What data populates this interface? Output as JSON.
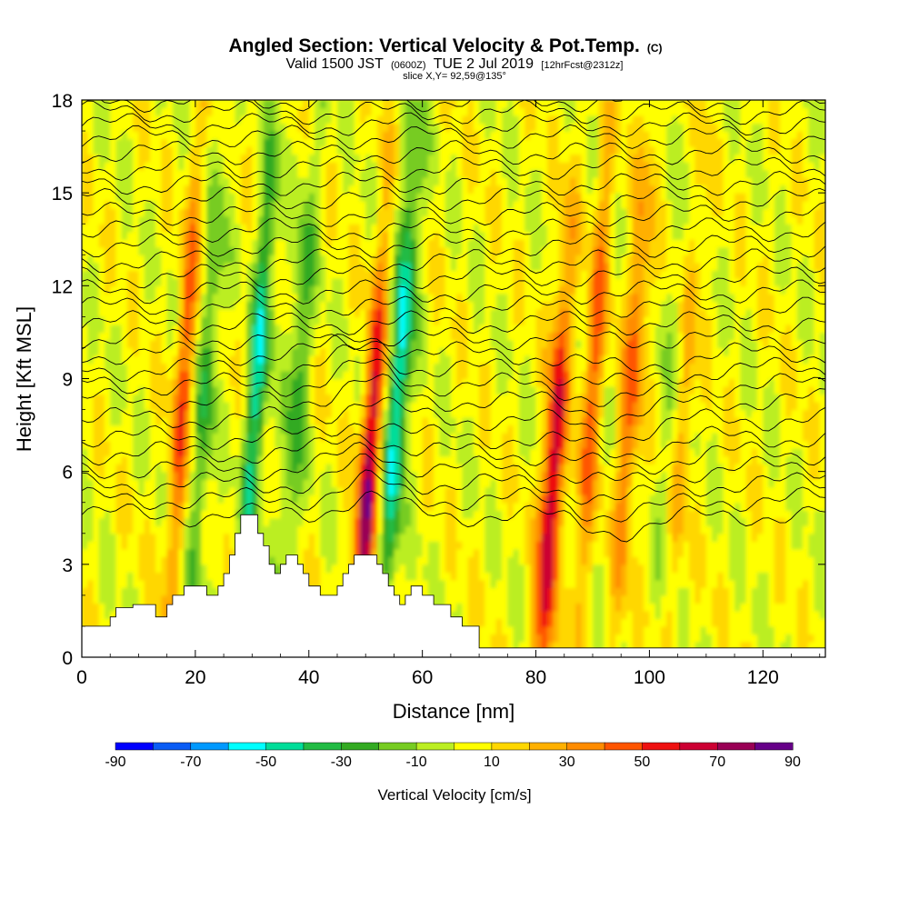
{
  "title": {
    "main": "Angled Section: Vertical Velocity & Pot.Temp.",
    "main_suffix": "(C)",
    "valid_prefix": "Valid 1500 JST",
    "valid_z": "(0600Z)",
    "valid_date": "TUE 2 Jul 2019",
    "valid_fcst": "[12hrFcst@2312z]",
    "slice": "slice X,Y= 92,59@135°"
  },
  "chart_data": {
    "type": "heatmap",
    "xlabel": "Distance [nm]",
    "ylabel": "Height [Kft MSL]",
    "xlim": [
      0,
      131
    ],
    "ylim": [
      0,
      18
    ],
    "x_ticks": [
      0,
      20,
      40,
      60,
      80,
      100,
      120
    ],
    "y_ticks": [
      0,
      3,
      6,
      9,
      12,
      15,
      18
    ],
    "colorbar": {
      "title": "Vertical Velocity [cm/s]",
      "tick_labels": [
        "-90",
        "-70",
        "-50",
        "-30",
        "-10",
        "10",
        "30",
        "50",
        "70",
        "90"
      ],
      "levels": [
        -90,
        -80,
        -70,
        -60,
        -50,
        -40,
        -30,
        -20,
        -10,
        0,
        10,
        20,
        30,
        40,
        50,
        60,
        70,
        80,
        90
      ],
      "colors": [
        "#0000ff",
        "#0a5cf5",
        "#0099ff",
        "#00ffff",
        "#00dd99",
        "#22bb44",
        "#33aa22",
        "#77cc22",
        "#bbee22",
        "#ffff00",
        "#ffd700",
        "#ffb000",
        "#ff8c00",
        "#ff5500",
        "#ee1111",
        "#cc0033",
        "#990055",
        "#660088"
      ]
    },
    "vertical_velocity_features": [
      {
        "x": 17,
        "kind": "updraft",
        "peak_cms": 40
      },
      {
        "x": 21,
        "kind": "downdraft",
        "peak_cms": -30
      },
      {
        "x": 30,
        "kind": "downdraft",
        "peak_cms": -50
      },
      {
        "x": 37,
        "kind": "downdraft",
        "peak_cms": -30
      },
      {
        "x": 50.5,
        "kind": "updraft",
        "peak_cms": 70
      },
      {
        "x": 55,
        "kind": "downdraft",
        "peak_cms": -60
      },
      {
        "x": 83,
        "kind": "updraft",
        "peak_cms": 70
      },
      {
        "x": 89,
        "kind": "updraft",
        "peak_cms": 40
      },
      {
        "x": 96,
        "kind": "updraft",
        "peak_cms": 40
      },
      {
        "x": 104,
        "kind": "downdraft",
        "peak_cms": -30
      },
      {
        "x": 105,
        "kind": "updraft",
        "peak_cms": 40
      }
    ],
    "terrain": [
      [
        0,
        1.0
      ],
      [
        5,
        1.0
      ],
      [
        5,
        1.3
      ],
      [
        6,
        1.3
      ],
      [
        6,
        1.6
      ],
      [
        9,
        1.6
      ],
      [
        9,
        1.7
      ],
      [
        13,
        1.7
      ],
      [
        13,
        1.3
      ],
      [
        15,
        1.3
      ],
      [
        15,
        1.7
      ],
      [
        16,
        1.7
      ],
      [
        16,
        2.0
      ],
      [
        18,
        2.0
      ],
      [
        18,
        2.3
      ],
      [
        22,
        2.3
      ],
      [
        22,
        2.0
      ],
      [
        24,
        2.0
      ],
      [
        24,
        2.3
      ],
      [
        25,
        2.3
      ],
      [
        25,
        2.7
      ],
      [
        26,
        2.7
      ],
      [
        26,
        3.3
      ],
      [
        27,
        3.3
      ],
      [
        27,
        4.0
      ],
      [
        28,
        4.0
      ],
      [
        28,
        4.6
      ],
      [
        31,
        4.6
      ],
      [
        31,
        4.0
      ],
      [
        32,
        4.0
      ],
      [
        32,
        3.6
      ],
      [
        33,
        3.6
      ],
      [
        33,
        3.0
      ],
      [
        34,
        3.0
      ],
      [
        34,
        2.7
      ],
      [
        35,
        2.7
      ],
      [
        35,
        3.0
      ],
      [
        36,
        3.0
      ],
      [
        36,
        3.3
      ],
      [
        38,
        3.3
      ],
      [
        38,
        3.0
      ],
      [
        39,
        3.0
      ],
      [
        39,
        2.7
      ],
      [
        40,
        2.7
      ],
      [
        40,
        2.3
      ],
      [
        42,
        2.3
      ],
      [
        42,
        2.0
      ],
      [
        45,
        2.0
      ],
      [
        45,
        2.3
      ],
      [
        46,
        2.3
      ],
      [
        46,
        2.7
      ],
      [
        47,
        2.7
      ],
      [
        47,
        3.0
      ],
      [
        48,
        3.0
      ],
      [
        48,
        3.3
      ],
      [
        52,
        3.3
      ],
      [
        52,
        3.0
      ],
      [
        53,
        3.0
      ],
      [
        53,
        2.7
      ],
      [
        54,
        2.7
      ],
      [
        54,
        2.3
      ],
      [
        55,
        2.3
      ],
      [
        55,
        2.0
      ],
      [
        56,
        2.0
      ],
      [
        56,
        1.7
      ],
      [
        57,
        1.7
      ],
      [
        57,
        2.0
      ],
      [
        58,
        2.0
      ],
      [
        58,
        2.3
      ],
      [
        60,
        2.3
      ],
      [
        60,
        2.0
      ],
      [
        62,
        2.0
      ],
      [
        62,
        1.7
      ],
      [
        65,
        1.7
      ],
      [
        65,
        1.3
      ],
      [
        67,
        1.3
      ],
      [
        67,
        1.0
      ],
      [
        70,
        1.0
      ],
      [
        70,
        0.3
      ],
      [
        131,
        0.3
      ]
    ],
    "theta_contours": {
      "levels": [
        30,
        31,
        32,
        33,
        34,
        35,
        36,
        37,
        38,
        39,
        40,
        41,
        42,
        43,
        44,
        45,
        46,
        47,
        48,
        49,
        50,
        51,
        52,
        53,
        54,
        55,
        56,
        57,
        58,
        59
      ],
      "base_heights_kft": [
        4.6,
        5.1,
        5.6,
        6.1,
        6.6,
        7.1,
        7.7,
        8.3,
        8.8,
        9.3,
        9.8,
        10.3,
        10.8,
        11.3,
        11.8,
        12.3,
        12.8,
        13.3,
        13.8,
        14.3,
        14.8,
        15.3,
        15.8,
        16.3,
        16.8,
        17.2,
        17.6,
        18.0,
        18.4,
        18.8
      ]
    }
  }
}
